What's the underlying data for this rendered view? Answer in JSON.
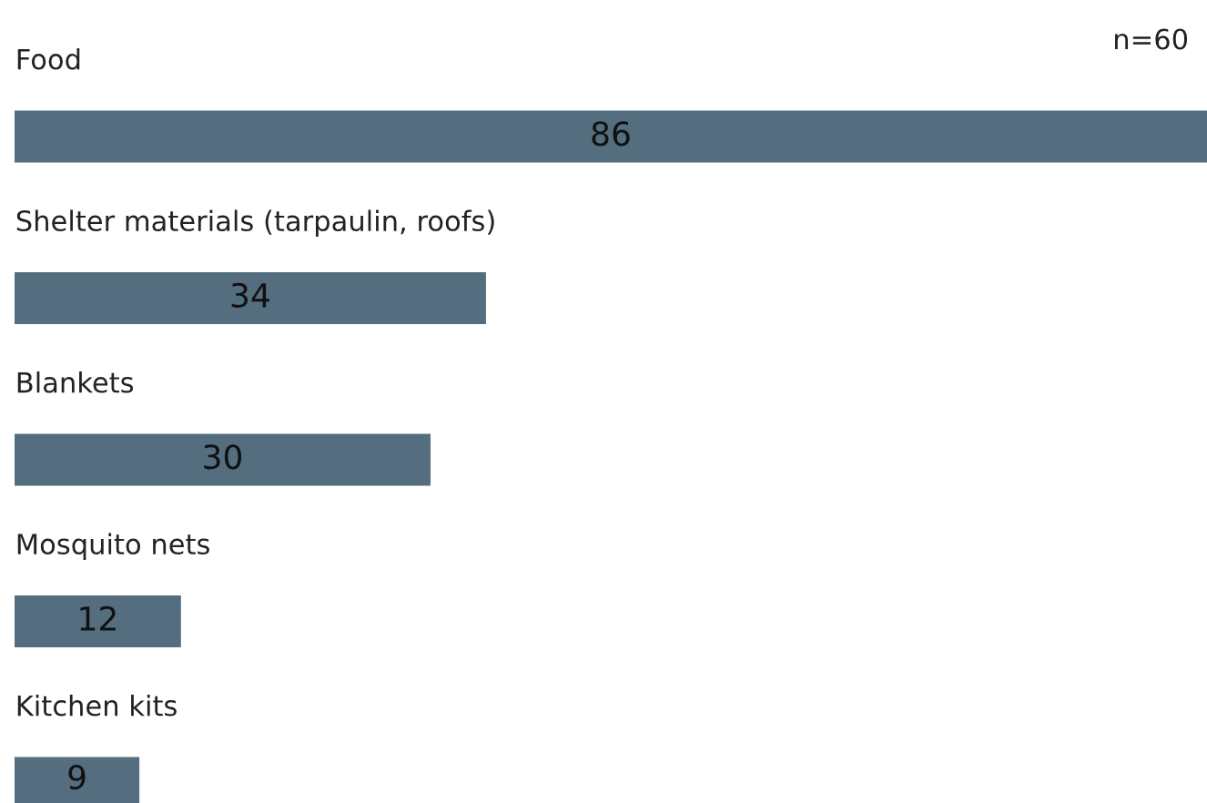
{
  "chart_data": {
    "type": "bar",
    "orientation": "horizontal",
    "categories": [
      "Food",
      "Shelter materials (tarpaulin, roofs)",
      "Blankets",
      "Mosquito nets",
      "Kitchen kits"
    ],
    "values": [
      86,
      34,
      30,
      12,
      9
    ],
    "color": "#546e7f",
    "data_labels": true,
    "annotations": [
      "n=60"
    ]
  }
}
